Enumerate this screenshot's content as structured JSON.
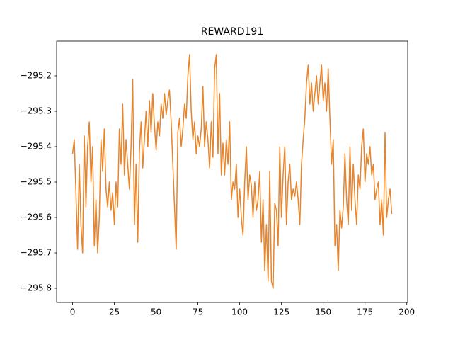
{
  "chart_data": {
    "type": "line",
    "title": "REWARD191",
    "x": [
      0,
      1,
      2,
      3,
      4,
      5,
      6,
      7,
      8,
      9,
      10,
      11,
      12,
      13,
      14,
      15,
      16,
      17,
      18,
      19,
      20,
      21,
      22,
      23,
      24,
      25,
      26,
      27,
      28,
      29,
      30,
      31,
      32,
      33,
      34,
      35,
      36,
      37,
      38,
      39,
      40,
      41,
      42,
      43,
      44,
      45,
      46,
      47,
      48,
      49,
      50,
      51,
      52,
      53,
      54,
      55,
      56,
      57,
      58,
      59,
      60,
      61,
      62,
      63,
      64,
      65,
      66,
      67,
      68,
      69,
      70,
      71,
      72,
      73,
      74,
      75,
      76,
      77,
      78,
      79,
      80,
      81,
      82,
      83,
      84,
      85,
      86,
      87,
      88,
      89,
      90,
      91,
      92,
      93,
      94,
      95,
      96,
      97,
      98,
      99,
      100,
      101,
      102,
      103,
      104,
      105,
      106,
      107,
      108,
      109,
      110,
      111,
      112,
      113,
      114,
      115,
      116,
      117,
      118,
      119,
      120,
      121,
      122,
      123,
      124,
      125,
      126,
      127,
      128,
      129,
      130,
      131,
      132,
      133,
      134,
      135,
      136,
      137,
      138,
      139,
      140,
      141,
      142,
      143,
      144,
      145,
      146,
      147,
      148,
      149,
      150,
      151,
      152,
      153,
      154,
      155,
      156,
      157,
      158,
      159,
      160,
      161,
      162,
      163,
      164,
      165,
      166,
      167,
      168,
      169,
      170,
      171,
      172,
      173,
      174,
      175,
      176,
      177,
      178,
      179,
      180,
      181,
      182,
      183,
      184,
      185,
      186,
      187,
      188,
      189,
      190,
      191
    ],
    "series": [
      {
        "color": "#e8842a",
        "values": [
          -295.42,
          -295.38,
          -295.53,
          -295.69,
          -295.45,
          -295.62,
          -295.7,
          -295.37,
          -295.57,
          -295.4,
          -295.33,
          -295.5,
          -295.4,
          -295.68,
          -295.55,
          -295.7,
          -295.6,
          -295.38,
          -295.47,
          -295.35,
          -295.52,
          -295.57,
          -295.5,
          -295.58,
          -295.53,
          -295.62,
          -295.5,
          -295.57,
          -295.35,
          -295.45,
          -295.28,
          -295.48,
          -295.38,
          -295.45,
          -295.52,
          -295.4,
          -295.21,
          -295.62,
          -295.45,
          -295.67,
          -295.41,
          -295.33,
          -295.46,
          -295.38,
          -295.3,
          -295.4,
          -295.27,
          -295.36,
          -295.25,
          -295.34,
          -295.41,
          -295.33,
          -295.37,
          -295.28,
          -295.32,
          -295.25,
          -295.31,
          -295.27,
          -295.24,
          -295.33,
          -295.45,
          -295.57,
          -295.69,
          -295.36,
          -295.32,
          -295.4,
          -295.35,
          -295.28,
          -295.32,
          -295.2,
          -295.14,
          -295.3,
          -295.38,
          -295.33,
          -295.42,
          -295.37,
          -295.4,
          -295.35,
          -295.23,
          -295.4,
          -295.33,
          -295.38,
          -295.46,
          -295.33,
          -295.43,
          -295.18,
          -295.14,
          -295.42,
          -295.25,
          -295.48,
          -295.39,
          -295.48,
          -295.38,
          -295.45,
          -295.33,
          -295.55,
          -295.5,
          -295.52,
          -295.45,
          -295.6,
          -295.52,
          -295.6,
          -295.65,
          -295.5,
          -295.4,
          -295.55,
          -295.48,
          -295.51,
          -295.6,
          -295.5,
          -295.58,
          -295.55,
          -295.47,
          -295.67,
          -295.55,
          -295.75,
          -295.62,
          -295.78,
          -295.47,
          -295.78,
          -295.8,
          -295.56,
          -295.58,
          -295.68,
          -295.4,
          -295.6,
          -295.48,
          -295.4,
          -295.62,
          -295.5,
          -295.45,
          -295.55,
          -295.52,
          -295.54,
          -295.5,
          -295.55,
          -295.62,
          -295.45,
          -295.38,
          -295.32,
          -295.22,
          -295.17,
          -295.28,
          -295.22,
          -295.3,
          -295.25,
          -295.2,
          -295.28,
          -295.22,
          -295.17,
          -295.27,
          -295.22,
          -295.3,
          -295.18,
          -295.32,
          -295.45,
          -295.38,
          -295.68,
          -295.62,
          -295.75,
          -295.58,
          -295.63,
          -295.57,
          -295.42,
          -295.55,
          -295.62,
          -295.4,
          -295.58,
          -295.45,
          -295.55,
          -295.62,
          -295.48,
          -295.52,
          -295.4,
          -295.35,
          -295.5,
          -295.42,
          -295.45,
          -295.4,
          -295.48,
          -295.45,
          -295.55,
          -295.52,
          -295.5,
          -295.62,
          -295.55,
          -295.65,
          -295.36,
          -295.6,
          -295.55,
          -295.52,
          -295.59
        ]
      }
    ],
    "xlim": [
      -9.55,
      200.55
    ],
    "xticks": [
      0,
      25,
      50,
      75,
      100,
      125,
      150,
      175,
      200
    ],
    "ylim": [
      -295.84,
      -295.102
    ],
    "yticks": [
      {
        "value": -295.8,
        "label": "−295.8"
      },
      {
        "value": -295.7,
        "label": "−295.7"
      },
      {
        "value": -295.6,
        "label": "−295.6"
      },
      {
        "value": -295.5,
        "label": "−295.5"
      },
      {
        "value": -295.4,
        "label": "−295.4"
      },
      {
        "value": -295.3,
        "label": "−295.3"
      },
      {
        "value": -295.2,
        "label": "−295.2"
      }
    ],
    "grid": false
  }
}
